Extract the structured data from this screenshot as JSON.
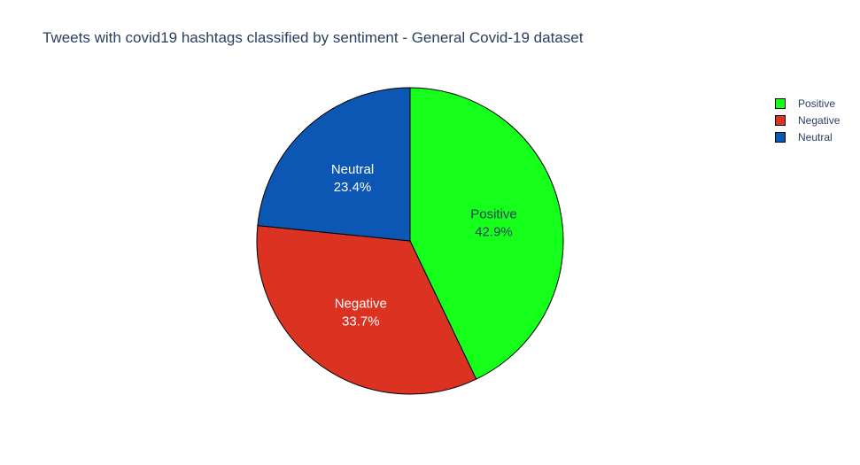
{
  "chart_data": {
    "type": "pie",
    "title": "Tweets with covid19 hashtags classified by sentiment - General Covid-19 dataset",
    "labels": [
      "Positive",
      "Negative",
      "Neutral"
    ],
    "values": [
      42.9,
      33.7,
      23.4
    ],
    "value_labels": [
      "42.9%",
      "33.7%",
      "23.4%"
    ],
    "colors": [
      "#16ff1a",
      "#db3222",
      "#0b57b3"
    ],
    "label_colors": [
      "#2a3f5f",
      "#ffffff",
      "#ffffff"
    ],
    "legend_position": "top-right",
    "direction": "clockwise",
    "start_angle": "12 o'clock"
  }
}
